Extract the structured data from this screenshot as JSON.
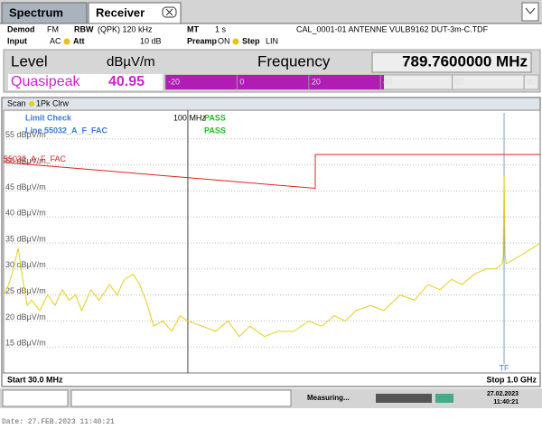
{
  "tabs": [
    "Spectrum",
    "Receiver"
  ],
  "settings": {
    "demod_label": "Demod",
    "demod": "FM",
    "rbw_label": "RBW",
    "rbw": "(QPK) 120 kHz",
    "mt_label": "MT",
    "mt": "1 s",
    "transducer": "CAL_0001-01 ANTENNE VULB9162 DUT-3m-C.TDF",
    "input_label": "Input",
    "input": "AC",
    "att_label": "Att",
    "att": "10 dB",
    "preamp_label": "Preamp",
    "preamp": "ON",
    "step_label": "Step",
    "step": "LIN"
  },
  "display": {
    "level_label": "Level",
    "level_unit": "dBµV/m",
    "frequency_label": "Frequency",
    "frequency": "789.7600000 MHz",
    "detector": "Quasipeak",
    "level": 40.95,
    "meter_lim": [
      -20,
      84
    ],
    "meter_ticks": [
      -20,
      0,
      20,
      40,
      60,
      80
    ]
  },
  "chart_data": {
    "type": "line",
    "panel": "Scan",
    "limit_check": "Limit Check",
    "limit_line": "Line 55032_A_F_FAC",
    "results": [
      "PASS",
      "PASS"
    ],
    "xscale": "log",
    "xlim": [
      30,
      1000
    ],
    "xticks": [
      {
        "value": 100,
        "label": "100 MHz"
      }
    ],
    "ylim": [
      10,
      60
    ],
    "yticks": [
      {
        "value": 55,
        "label": "55 dBµV/m"
      },
      {
        "value": 50,
        "label": "50 dBµV/m"
      },
      {
        "value": 45,
        "label": "45 dBµV/m"
      },
      {
        "value": 40,
        "label": "40 dBµV/m"
      },
      {
        "value": 35,
        "label": "35 dBµV/m"
      },
      {
        "value": 30,
        "label": "30 dBµV/m"
      },
      {
        "value": 25,
        "label": "25 dBµV/m"
      },
      {
        "value": 20,
        "label": "20 dBµV/m"
      },
      {
        "value": 15,
        "label": "15 dBµV/m"
      }
    ],
    "grid": true,
    "marker": {
      "label": "TF",
      "x": 789.76
    },
    "start": "Start 30.0 MHz",
    "stop": "Stop 1.0 GHz",
    "series": [
      {
        "name": "1Pk Clrw",
        "color": "#e2cf1e",
        "x": [
          30,
          31,
          32,
          33,
          34,
          35,
          36,
          38,
          40,
          42,
          44,
          46,
          48,
          50,
          53,
          56,
          60,
          63,
          66,
          70,
          73,
          76,
          80,
          85,
          90,
          95,
          100,
          110,
          120,
          130,
          140,
          150,
          165,
          180,
          200,
          220,
          240,
          260,
          280,
          300,
          330,
          360,
          400,
          440,
          480,
          520,
          560,
          600,
          650,
          700,
          750,
          780,
          785,
          790,
          795,
          800,
          850,
          900,
          950,
          1000
        ],
        "values": [
          25,
          27,
          30,
          34,
          28,
          23,
          24,
          22,
          25,
          23,
          26,
          24,
          25,
          22,
          26,
          24,
          27,
          25,
          28,
          29,
          27,
          24,
          19,
          20,
          18,
          21,
          20,
          19,
          18,
          20,
          17,
          19,
          17,
          18,
          18,
          20,
          19,
          21,
          20,
          22,
          23,
          22,
          25,
          24,
          27,
          26,
          28,
          27,
          29,
          30,
          30,
          31,
          32,
          48,
          33,
          31,
          32,
          33,
          34,
          35
        ]
      },
      {
        "name": "55032_A_F_FAC",
        "color": "#e02020",
        "x": [
          30,
          230,
          230,
          1000
        ],
        "values": [
          50.5,
          45.5,
          52,
          52
        ]
      }
    ]
  },
  "status": {
    "state": "Measuring...",
    "date": "27.02.2023",
    "time": "11:40:21"
  },
  "footer": "Date: 27.FEB.2023  11:40:21"
}
